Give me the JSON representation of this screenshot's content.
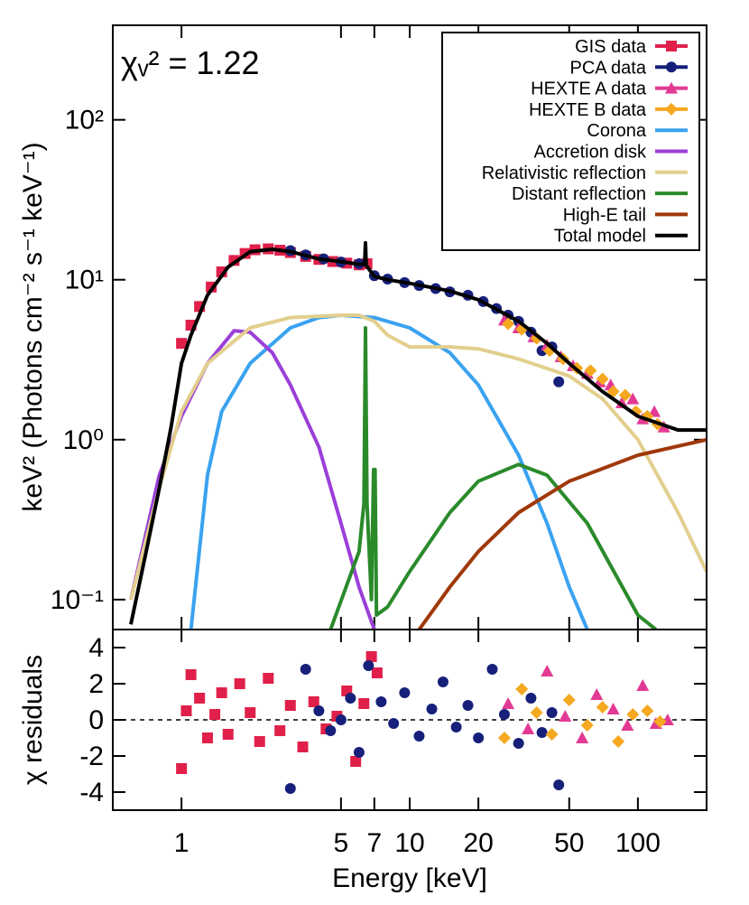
{
  "chart_data": [
    {
      "type": "line",
      "annotation": "χᵥ² = 1.22",
      "y_label": "keV² (Photons cm⁻² s⁻¹ keV⁻¹)",
      "xscale": "log",
      "yscale": "log",
      "xlim": [
        0.5,
        200
      ],
      "ylim": [
        0.065,
        390
      ],
      "xticks": [
        1,
        5,
        7,
        10,
        20,
        50,
        100
      ],
      "yticks": [
        {
          "value": 0.1,
          "label": "10⁻¹"
        },
        {
          "value": 1,
          "label": "10⁰"
        },
        {
          "value": 10,
          "label": "10¹"
        },
        {
          "value": 100,
          "label": "10²"
        }
      ],
      "legend": "upper right",
      "series": [
        {
          "name": "GIS data",
          "color": "#e0204a",
          "marker": "square",
          "x": [
            1.0,
            1.1,
            1.2,
            1.35,
            1.5,
            1.7,
            1.9,
            2.1,
            2.4,
            2.7,
            3.0,
            3.5,
            4.0,
            4.6,
            5.3,
            6.0,
            6.5
          ],
          "values": [
            4.0,
            5.2,
            6.8,
            9.0,
            11.2,
            13.2,
            14.6,
            15.4,
            15.6,
            15.3,
            14.8,
            14.0,
            13.4,
            13.0,
            12.7,
            12.4,
            12.6
          ]
        },
        {
          "name": "PCA data",
          "color": "#16207a",
          "marker": "circle",
          "x": [
            3.0,
            3.5,
            4.2,
            5.0,
            6.0,
            7.0,
            8.0,
            9.5,
            11,
            13,
            15,
            18,
            21,
            24,
            27,
            30,
            34,
            38,
            42,
            45
          ],
          "values": [
            15.2,
            14.3,
            13.5,
            12.9,
            12.6,
            10.6,
            10.1,
            9.6,
            9.2,
            8.8,
            8.4,
            8.0,
            7.3,
            6.6,
            6.0,
            5.5,
            4.7,
            3.6,
            3.8,
            2.3
          ]
        },
        {
          "name": "HEXTE A data",
          "color": "#e23a94",
          "marker": "triangle",
          "x": [
            26,
            30,
            35,
            40,
            46,
            52,
            60,
            68,
            76,
            85,
            95,
            105,
            118,
            130
          ],
          "values": [
            5.6,
            5.0,
            4.4,
            3.9,
            3.3,
            2.9,
            2.6,
            2.3,
            2.2,
            1.7,
            1.8,
            1.35,
            1.5,
            1.2
          ]
        },
        {
          "name": "HEXTE B data",
          "color": "#f5a820",
          "marker": "diamond",
          "x": [
            27,
            31,
            36,
            41,
            47,
            54,
            62,
            70,
            78,
            88,
            98,
            110,
            122
          ],
          "values": [
            5.3,
            4.9,
            4.3,
            3.6,
            3.2,
            2.8,
            2.7,
            2.4,
            2.0,
            1.9,
            1.5,
            1.4,
            1.25
          ]
        },
        {
          "name": "Corona",
          "color": "#3aa2f0",
          "marker": "line",
          "x": [
            1.1,
            1.3,
            1.5,
            2,
            3,
            4,
            5,
            7,
            10,
            15,
            20,
            30,
            40,
            50,
            60
          ],
          "values": [
            0.065,
            0.6,
            1.5,
            3,
            5,
            5.8,
            6,
            5.8,
            5,
            3.5,
            2.2,
            0.8,
            0.3,
            0.12,
            0.065
          ]
        },
        {
          "name": "Accretion disk",
          "color": "#9b3fd8",
          "marker": "line",
          "x": [
            0.6,
            0.8,
            1,
            1.3,
            1.7,
            2,
            2.5,
            3,
            4,
            5,
            6,
            7
          ],
          "values": [
            0.1,
            0.6,
            1.4,
            3,
            4.8,
            4.7,
            3.5,
            2.2,
            0.9,
            0.3,
            0.12,
            0.065
          ]
        },
        {
          "name": "Relativistic reflection",
          "color": "#e2cf8e",
          "marker": "line",
          "x": [
            0.6,
            0.8,
            1,
            1.3,
            2,
            3,
            5,
            6,
            7,
            8,
            10,
            15,
            20,
            30,
            50,
            70,
            100,
            150,
            200
          ],
          "values": [
            0.1,
            0.5,
            1.5,
            3,
            5,
            5.8,
            6,
            6,
            5.5,
            4.5,
            3.8,
            3.8,
            3.7,
            3.2,
            2.5,
            1.8,
            1,
            0.35,
            0.15
          ]
        },
        {
          "name": "Distant reflection",
          "color": "#2a8a2a",
          "marker": "line",
          "x": [
            4.5,
            6,
            6.3,
            6.4,
            6.5,
            6.8,
            6.95,
            7.05,
            7.15,
            8,
            10,
            15,
            20,
            30,
            40,
            60,
            100,
            120
          ],
          "values": [
            0.065,
            0.2,
            0.4,
            5,
            0.4,
            0.1,
            0.65,
            0.65,
            0.08,
            0.09,
            0.15,
            0.35,
            0.55,
            0.7,
            0.6,
            0.3,
            0.08,
            0.065
          ]
        },
        {
          "name": "High-E tail",
          "color": "#a0380a",
          "marker": "line",
          "x": [
            11,
            15,
            20,
            30,
            50,
            100,
            200
          ],
          "values": [
            0.065,
            0.12,
            0.2,
            0.35,
            0.55,
            0.8,
            1.0
          ]
        },
        {
          "name": "Total model",
          "color": "#000000",
          "marker": "line",
          "x": [
            0.6,
            0.7,
            0.8,
            0.9,
            1.0,
            1.1,
            1.3,
            1.6,
            2,
            2.5,
            3,
            4,
            5,
            6,
            6.35,
            6.4,
            6.45,
            7,
            8,
            10,
            15,
            20,
            30,
            40,
            50,
            70,
            100,
            150,
            200
          ],
          "values": [
            0.07,
            0.2,
            0.5,
            1.2,
            3,
            4.5,
            8,
            12,
            15,
            15.5,
            15,
            13.5,
            13,
            12.5,
            12.5,
            17,
            12.3,
            10.5,
            10,
            9.5,
            8.5,
            7.5,
            5.5,
            4,
            3,
            2,
            1.4,
            1.15,
            1.15
          ]
        }
      ]
    },
    {
      "type": "scatter",
      "x_label": "Energy [keV]",
      "y_label": "χ residuals",
      "xscale": "log",
      "xlim": [
        0.5,
        200
      ],
      "ylim": [
        -5,
        5
      ],
      "xticks": [
        1,
        5,
        7,
        10,
        20,
        50,
        100
      ],
      "yticks": [
        -4,
        -2,
        0,
        2,
        4
      ],
      "hline": 0,
      "series": [
        {
          "name": "GIS data",
          "color": "#e0204a",
          "marker": "square",
          "x": [
            1.0,
            1.05,
            1.1,
            1.2,
            1.3,
            1.4,
            1.5,
            1.6,
            1.8,
            2.0,
            2.2,
            2.4,
            2.7,
            3.0,
            3.4,
            3.8,
            4.3,
            4.8,
            5.3,
            5.8,
            6.3,
            6.8,
            7.2
          ],
          "values": [
            -2.7,
            0.5,
            2.5,
            1.2,
            -1.0,
            0.3,
            1.5,
            -0.8,
            2.0,
            0.4,
            -1.2,
            2.3,
            -0.6,
            0.8,
            -1.5,
            1.0,
            -0.5,
            0.2,
            1.6,
            -2.3,
            0.9,
            3.5,
            2.6
          ]
        },
        {
          "name": "PCA data",
          "color": "#16207a",
          "marker": "circle",
          "x": [
            3.0,
            3.5,
            4.0,
            4.5,
            5.0,
            5.5,
            6.0,
            6.6,
            7.5,
            8.5,
            9.5,
            11,
            12.5,
            14,
            16,
            18,
            20,
            23,
            26,
            30,
            34,
            38,
            42,
            45
          ],
          "values": [
            -3.8,
            2.8,
            0.5,
            -0.6,
            0.0,
            1.2,
            -1.8,
            3.0,
            1.0,
            -0.2,
            1.5,
            -0.9,
            0.6,
            2.1,
            -0.4,
            0.8,
            -1.0,
            2.8,
            0.3,
            -1.3,
            1.2,
            -0.7,
            0.4,
            -3.6
          ]
        },
        {
          "name": "HEXTE A data",
          "color": "#e23a94",
          "marker": "triangle",
          "x": [
            27,
            33,
            40,
            48,
            57,
            66,
            78,
            90,
            105,
            120,
            135
          ],
          "values": [
            0.9,
            -0.5,
            2.7,
            0.2,
            -1.0,
            1.4,
            0.6,
            -0.3,
            1.9,
            -0.2,
            0.0
          ]
        },
        {
          "name": "HEXTE B data",
          "color": "#f5a820",
          "marker": "diamond",
          "x": [
            26,
            31,
            36,
            42,
            50,
            60,
            70,
            82,
            95,
            110,
            125
          ],
          "values": [
            -1.0,
            1.7,
            0.4,
            -0.8,
            1.1,
            -0.3,
            0.7,
            -1.2,
            0.3,
            0.5,
            -0.1
          ]
        }
      ]
    }
  ]
}
